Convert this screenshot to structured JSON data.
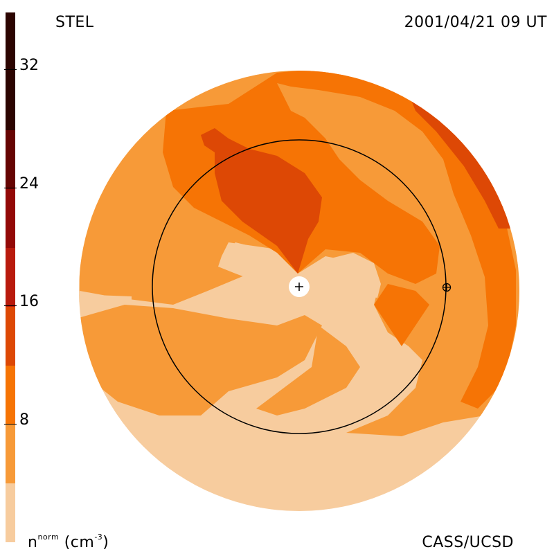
{
  "header": {
    "left_title": "STEL",
    "right_title": "2001/04/21 09 UT"
  },
  "footer": {
    "credit": "CASS/UCSD",
    "unit_base": "n",
    "unit_sup": "norm",
    "unit_paren": "(cm",
    "unit_exp": "-3",
    "unit_close": ")"
  },
  "colorbar": {
    "ticks": [
      "32",
      "24",
      "16",
      "8"
    ],
    "levels": [
      {
        "min": 0,
        "max": 4,
        "color": "#f7cc9e"
      },
      {
        "min": 4,
        "max": 8,
        "color": "#f79a38"
      },
      {
        "min": 8,
        "max": 12,
        "color": "#f67405"
      },
      {
        "min": 12,
        "max": 16,
        "color": "#dd4805"
      },
      {
        "min": 16,
        "max": 20,
        "color": "#b81a0d"
      },
      {
        "min": 20,
        "max": 24,
        "color": "#930907"
      },
      {
        "min": 24,
        "max": 28,
        "color": "#660403"
      },
      {
        "min": 28,
        "max": 36,
        "color": "#2c0501"
      }
    ]
  },
  "map": {
    "earth_orbit": "circle",
    "sun_marker": "plus-icon",
    "earth_marker": "earth-symbol-icon"
  }
}
